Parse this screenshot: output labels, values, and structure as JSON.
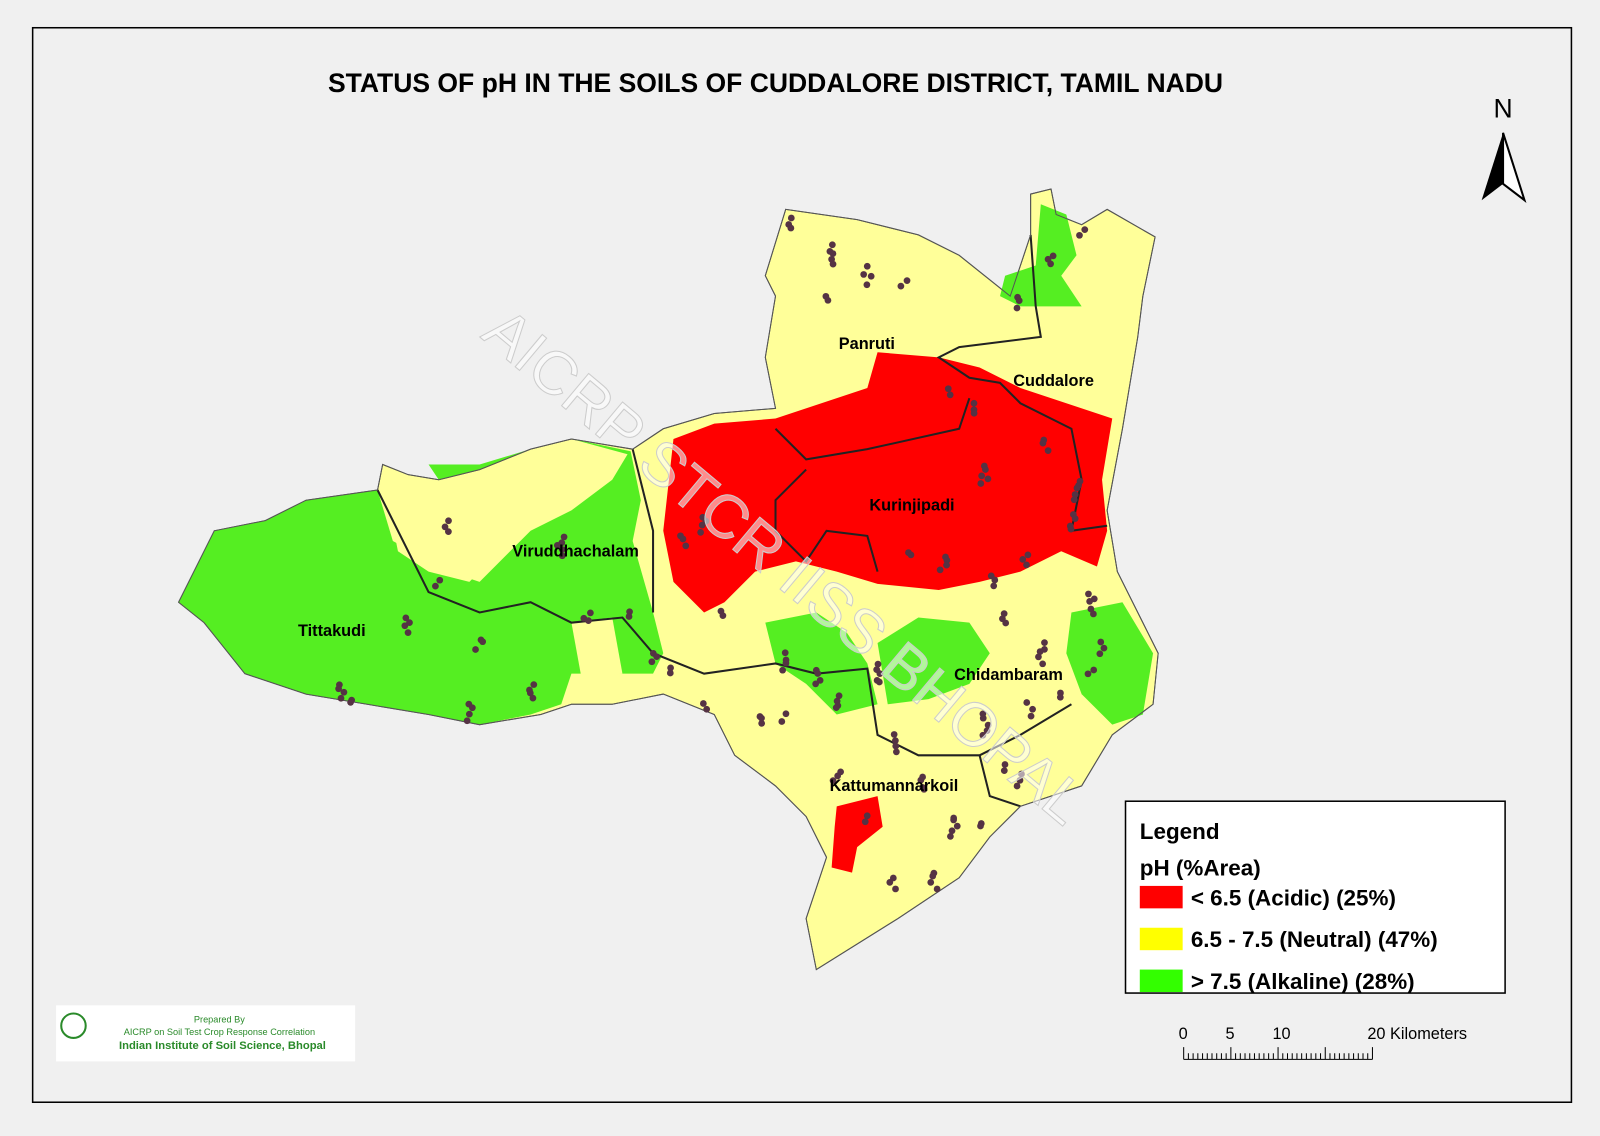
{
  "title": "STATUS OF pH  IN THE SOILS OF CUDDALORE DISTRICT, TAMIL NADU",
  "north": "N",
  "places": [
    {
      "label": "Panruti"
    },
    {
      "label": "Cuddalore"
    },
    {
      "label": "Kurinjipadi"
    },
    {
      "label": "Viruddhachalam"
    },
    {
      "label": "Tittakudi"
    },
    {
      "label": "Chidambaram"
    },
    {
      "label": "Kattumannarkoil"
    }
  ],
  "legend": {
    "title": "Legend",
    "subtitle": "pH (%Area)",
    "items": [
      {
        "label": "< 6.5 (Acidic) (25%)",
        "color": "#ff0000"
      },
      {
        "label": "6.5 - 7.5 (Neutral) (47%)",
        "color": "#ffff00"
      },
      {
        "label": "> 7.5 (Alkaline) (28%)",
        "color": "#33ff00"
      }
    ]
  },
  "scale": {
    "ticks": [
      "0",
      "5",
      "10",
      "20 Kilometers"
    ]
  },
  "watermark": "AICRP STCR IISS BHOPAL",
  "credits": {
    "line1": "Prepared By",
    "line2": "AICRP on Soil Test Crop Response Correlation",
    "line3": "Indian Institute of Soil Science, Bhopal"
  }
}
